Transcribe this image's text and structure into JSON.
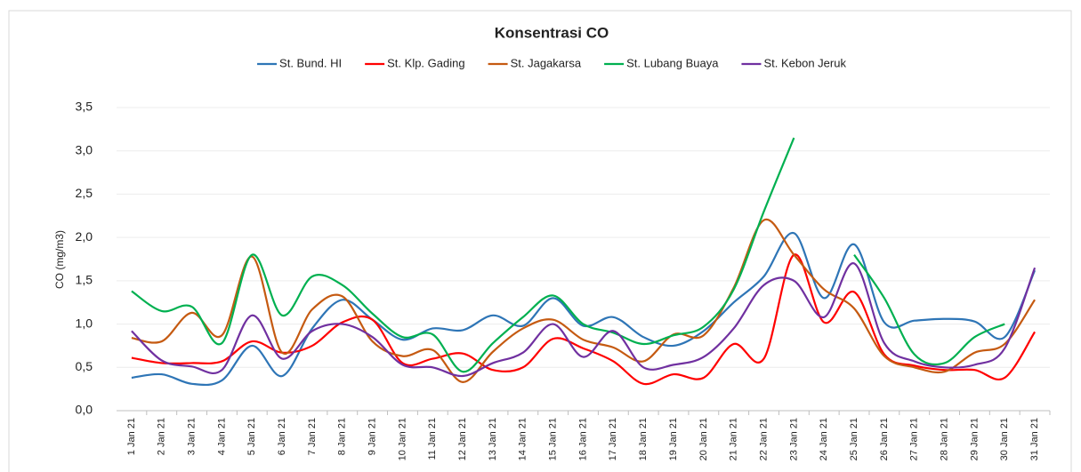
{
  "chart_data": {
    "type": "line",
    "title": "Konsentrasi CO",
    "y_label": "CO (mg/m3)",
    "categories": [
      "1 Jan 21",
      "2 Jan 21",
      "3 Jan 21",
      "4 Jan 21",
      "5 Jan 21",
      "6 Jan 21",
      "7 Jan 21",
      "8 Jan 21",
      "9 Jan 21",
      "10 Jan 21",
      "11 Jan 21",
      "12 Jan 21",
      "13 Jan 21",
      "14 Jan 21",
      "15 Jan 21",
      "16 Jan 21",
      "17 Jan 21",
      "18 Jan 21",
      "19 Jan 21",
      "20 Jan 21",
      "21 Jan 21",
      "22 Jan 21",
      "23 Jan 21",
      "24 Jan 21",
      "25 Jan 21",
      "26 Jan 21",
      "27 Jan 21",
      "28 Jan 21",
      "29 Jan 21",
      "30 Jan 21",
      "31 Jan 21"
    ],
    "series": [
      {
        "name": "St. Bund. HI",
        "color": "#2e75b6",
        "values": [
          0.38,
          0.42,
          0.31,
          0.35,
          0.75,
          0.4,
          0.95,
          1.28,
          1.05,
          0.82,
          0.95,
          0.93,
          1.1,
          0.98,
          1.3,
          0.98,
          1.08,
          0.85,
          0.75,
          0.92,
          1.25,
          1.55,
          2.05,
          1.3,
          1.92,
          1.02,
          1.04,
          1.06,
          1.03,
          0.85,
          1.62
        ]
      },
      {
        "name": "St. Klp. Gading",
        "color": "#ff0000",
        "values": [
          0.61,
          0.55,
          0.55,
          0.57,
          0.8,
          0.67,
          0.75,
          1.02,
          1.05,
          0.55,
          0.6,
          0.66,
          0.47,
          0.5,
          0.83,
          0.72,
          0.57,
          0.31,
          0.42,
          0.38,
          0.77,
          0.6,
          1.8,
          1.02,
          1.37,
          0.65,
          0.52,
          0.47,
          0.47,
          0.38,
          0.91
        ]
      },
      {
        "name": "St. Jagakarsa",
        "color": "#c55a11",
        "values": [
          0.84,
          0.8,
          1.13,
          0.87,
          1.78,
          0.67,
          1.17,
          1.32,
          0.8,
          0.63,
          0.7,
          0.33,
          0.68,
          0.95,
          1.05,
          0.82,
          0.73,
          0.57,
          0.88,
          0.87,
          1.42,
          2.2,
          1.8,
          1.4,
          1.18,
          0.63,
          0.5,
          0.45,
          0.67,
          0.77,
          1.28
        ]
      },
      {
        "name": "St. Lubang Buaya",
        "color": "#00b050",
        "values": [
          1.38,
          1.15,
          1.2,
          0.78,
          1.8,
          1.1,
          1.55,
          1.45,
          1.12,
          0.85,
          0.88,
          0.45,
          0.78,
          1.08,
          1.33,
          1.0,
          0.9,
          0.77,
          0.87,
          0.97,
          1.4,
          2.3,
          3.15,
          null,
          1.8,
          1.3,
          0.65,
          0.55,
          0.85,
          1.0,
          null
        ]
      },
      {
        "name": "St. Kebon Jeruk",
        "color": "#7030a0",
        "values": [
          0.92,
          0.58,
          0.51,
          0.47,
          1.1,
          0.6,
          0.92,
          1.0,
          0.85,
          0.53,
          0.5,
          0.4,
          0.55,
          0.67,
          1.0,
          0.62,
          0.92,
          0.5,
          0.53,
          0.62,
          0.95,
          1.45,
          1.5,
          1.08,
          1.7,
          0.78,
          0.57,
          0.5,
          0.53,
          0.72,
          1.65
        ]
      }
    ],
    "ylim": [
      0,
      3.5
    ],
    "yticks": [
      {
        "value": 0,
        "label": "0,0"
      },
      {
        "value": 0.5,
        "label": "0,5"
      },
      {
        "value": 1,
        "label": "1,0"
      },
      {
        "value": 1.5,
        "label": "1,5"
      },
      {
        "value": 2,
        "label": "2,0"
      },
      {
        "value": 2.5,
        "label": "2,5"
      },
      {
        "value": 3,
        "label": "3,0"
      },
      {
        "value": 3.5,
        "label": "3,5"
      }
    ],
    "grid": true
  }
}
